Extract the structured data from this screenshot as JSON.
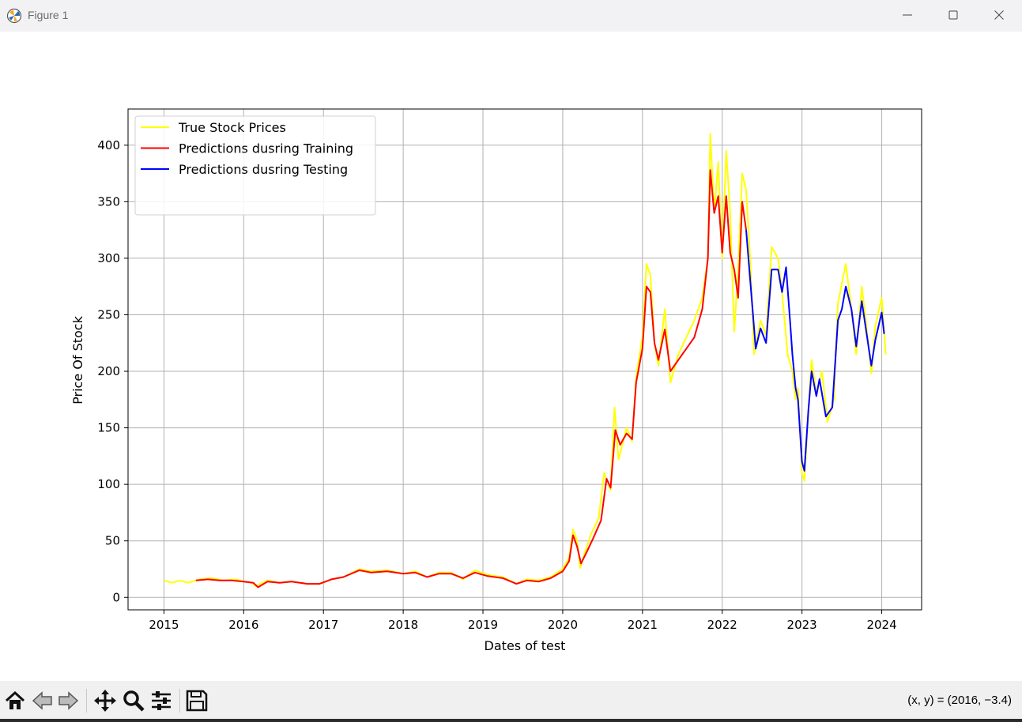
{
  "window": {
    "title": "Figure 1"
  },
  "toolbar": {
    "buttons": [
      "home-icon",
      "back-icon",
      "forward-icon",
      "pan-icon",
      "zoom-icon",
      "configure-subplots-icon",
      "save-icon"
    ],
    "coords": "(x, y) = (2016, −3.4)"
  },
  "chart_data": {
    "type": "line",
    "xlabel": "Dates of test",
    "ylabel": "Price Of Stock",
    "xlim": [
      2014.55,
      2024.5
    ],
    "ylim": [
      -11,
      432
    ],
    "xticks": [
      2015,
      2016,
      2017,
      2018,
      2019,
      2020,
      2021,
      2022,
      2023,
      2024
    ],
    "xtick_labels": [
      "2015",
      "2016",
      "2017",
      "2018",
      "2019",
      "2020",
      "2021",
      "2022",
      "2023",
      "2024"
    ],
    "yticks": [
      0,
      50,
      100,
      150,
      200,
      250,
      300,
      350,
      400
    ],
    "ytick_labels": [
      "0",
      "50",
      "100",
      "150",
      "200",
      "250",
      "300",
      "350",
      "400"
    ],
    "grid": true,
    "legend_position": "top-left",
    "series": [
      {
        "name": "True Stock Prices",
        "color": "#ffff00",
        "points": [
          [
            2015.0,
            15
          ],
          [
            2015.1,
            13
          ],
          [
            2015.2,
            15
          ],
          [
            2015.3,
            13
          ],
          [
            2015.45,
            16
          ],
          [
            2015.6,
            17
          ],
          [
            2015.75,
            15
          ],
          [
            2015.9,
            16
          ],
          [
            2016.0,
            14
          ],
          [
            2016.1,
            13
          ],
          [
            2016.15,
            10
          ],
          [
            2016.3,
            15
          ],
          [
            2016.45,
            13
          ],
          [
            2016.6,
            14
          ],
          [
            2016.8,
            12
          ],
          [
            2016.95,
            12
          ],
          [
            2017.1,
            16
          ],
          [
            2017.25,
            18
          ],
          [
            2017.45,
            25
          ],
          [
            2017.6,
            23
          ],
          [
            2017.8,
            24
          ],
          [
            2018.0,
            21
          ],
          [
            2018.15,
            23
          ],
          [
            2018.3,
            18
          ],
          [
            2018.45,
            22
          ],
          [
            2018.6,
            22
          ],
          [
            2018.75,
            16
          ],
          [
            2018.9,
            24
          ],
          [
            2019.05,
            20
          ],
          [
            2019.25,
            18
          ],
          [
            2019.42,
            12
          ],
          [
            2019.55,
            16
          ],
          [
            2019.7,
            15
          ],
          [
            2019.85,
            18
          ],
          [
            2020.0,
            25
          ],
          [
            2020.08,
            35
          ],
          [
            2020.13,
            60
          ],
          [
            2020.18,
            50
          ],
          [
            2020.22,
            26
          ],
          [
            2020.28,
            40
          ],
          [
            2020.35,
            55
          ],
          [
            2020.45,
            70
          ],
          [
            2020.52,
            110
          ],
          [
            2020.6,
            95
          ],
          [
            2020.65,
            168
          ],
          [
            2020.7,
            122
          ],
          [
            2020.8,
            150
          ],
          [
            2020.87,
            138
          ],
          [
            2020.92,
            195
          ],
          [
            2021.0,
            230
          ],
          [
            2021.05,
            295
          ],
          [
            2021.1,
            285
          ],
          [
            2021.15,
            225
          ],
          [
            2021.2,
            205
          ],
          [
            2021.28,
            255
          ],
          [
            2021.35,
            190
          ],
          [
            2021.45,
            215
          ],
          [
            2021.55,
            230
          ],
          [
            2021.65,
            245
          ],
          [
            2021.75,
            265
          ],
          [
            2021.82,
            300
          ],
          [
            2021.85,
            410
          ],
          [
            2021.9,
            340
          ],
          [
            2021.95,
            385
          ],
          [
            2022.0,
            300
          ],
          [
            2022.05,
            395
          ],
          [
            2022.1,
            340
          ],
          [
            2022.15,
            235
          ],
          [
            2022.2,
            290
          ],
          [
            2022.25,
            375
          ],
          [
            2022.3,
            360
          ],
          [
            2022.35,
            300
          ],
          [
            2022.4,
            215
          ],
          [
            2022.48,
            245
          ],
          [
            2022.55,
            232
          ],
          [
            2022.62,
            310
          ],
          [
            2022.7,
            300
          ],
          [
            2022.75,
            270
          ],
          [
            2022.82,
            215
          ],
          [
            2022.88,
            200
          ],
          [
            2022.92,
            175
          ],
          [
            2022.95,
            185
          ],
          [
            2023.0,
            110
          ],
          [
            2023.03,
            103
          ],
          [
            2023.08,
            165
          ],
          [
            2023.12,
            210
          ],
          [
            2023.18,
            180
          ],
          [
            2023.25,
            200
          ],
          [
            2023.32,
            155
          ],
          [
            2023.4,
            175
          ],
          [
            2023.45,
            260
          ],
          [
            2023.55,
            295
          ],
          [
            2023.62,
            255
          ],
          [
            2023.68,
            215
          ],
          [
            2023.75,
            275
          ],
          [
            2023.8,
            245
          ],
          [
            2023.87,
            198
          ],
          [
            2023.92,
            240
          ],
          [
            2024.0,
            265
          ],
          [
            2024.05,
            215
          ]
        ]
      },
      {
        "name": "Predictions dusring Training",
        "color": "#ff0000",
        "points": [
          [
            2015.4,
            15
          ],
          [
            2015.55,
            16
          ],
          [
            2015.7,
            15
          ],
          [
            2015.85,
            15
          ],
          [
            2016.0,
            14
          ],
          [
            2016.12,
            13
          ],
          [
            2016.18,
            9
          ],
          [
            2016.3,
            14
          ],
          [
            2016.45,
            13
          ],
          [
            2016.6,
            14
          ],
          [
            2016.8,
            12
          ],
          [
            2016.95,
            12
          ],
          [
            2017.1,
            16
          ],
          [
            2017.25,
            18
          ],
          [
            2017.45,
            24
          ],
          [
            2017.6,
            22
          ],
          [
            2017.8,
            23
          ],
          [
            2018.0,
            21
          ],
          [
            2018.15,
            22
          ],
          [
            2018.3,
            18
          ],
          [
            2018.45,
            21
          ],
          [
            2018.6,
            21
          ],
          [
            2018.75,
            17
          ],
          [
            2018.9,
            22
          ],
          [
            2019.05,
            19
          ],
          [
            2019.25,
            17
          ],
          [
            2019.42,
            12
          ],
          [
            2019.55,
            15
          ],
          [
            2019.7,
            14
          ],
          [
            2019.85,
            17
          ],
          [
            2020.0,
            23
          ],
          [
            2020.08,
            32
          ],
          [
            2020.13,
            55
          ],
          [
            2020.18,
            45
          ],
          [
            2020.23,
            30
          ],
          [
            2020.3,
            40
          ],
          [
            2020.38,
            52
          ],
          [
            2020.48,
            68
          ],
          [
            2020.55,
            105
          ],
          [
            2020.6,
            97
          ],
          [
            2020.66,
            148
          ],
          [
            2020.72,
            135
          ],
          [
            2020.8,
            145
          ],
          [
            2020.87,
            140
          ],
          [
            2020.92,
            190
          ],
          [
            2021.0,
            220
          ],
          [
            2021.05,
            275
          ],
          [
            2021.1,
            270
          ],
          [
            2021.15,
            225
          ],
          [
            2021.2,
            210
          ],
          [
            2021.28,
            237
          ],
          [
            2021.35,
            200
          ],
          [
            2021.45,
            210
          ],
          [
            2021.55,
            220
          ],
          [
            2021.65,
            230
          ],
          [
            2021.75,
            255
          ],
          [
            2021.82,
            300
          ],
          [
            2021.85,
            378
          ],
          [
            2021.9,
            340
          ],
          [
            2021.95,
            355
          ],
          [
            2022.0,
            305
          ],
          [
            2022.05,
            355
          ],
          [
            2022.1,
            305
          ],
          [
            2022.15,
            290
          ],
          [
            2022.2,
            265
          ],
          [
            2022.25,
            350
          ],
          [
            2022.3,
            325
          ]
        ]
      },
      {
        "name": "Predictions dusring Testing",
        "color": "#0000ff",
        "points": [
          [
            2022.3,
            325
          ],
          [
            2022.38,
            255
          ],
          [
            2022.42,
            220
          ],
          [
            2022.48,
            238
          ],
          [
            2022.55,
            225
          ],
          [
            2022.62,
            290
          ],
          [
            2022.7,
            290
          ],
          [
            2022.75,
            270
          ],
          [
            2022.8,
            292
          ],
          [
            2022.85,
            245
          ],
          [
            2022.88,
            215
          ],
          [
            2022.92,
            185
          ],
          [
            2022.95,
            175
          ],
          [
            2023.0,
            120
          ],
          [
            2023.03,
            112
          ],
          [
            2023.08,
            165
          ],
          [
            2023.12,
            200
          ],
          [
            2023.18,
            178
          ],
          [
            2023.22,
            193
          ],
          [
            2023.3,
            160
          ],
          [
            2023.38,
            168
          ],
          [
            2023.45,
            245
          ],
          [
            2023.5,
            255
          ],
          [
            2023.55,
            275
          ],
          [
            2023.62,
            255
          ],
          [
            2023.68,
            222
          ],
          [
            2023.75,
            262
          ],
          [
            2023.8,
            238
          ],
          [
            2023.87,
            205
          ],
          [
            2023.92,
            228
          ],
          [
            2024.0,
            252
          ],
          [
            2024.03,
            233
          ]
        ]
      }
    ]
  }
}
